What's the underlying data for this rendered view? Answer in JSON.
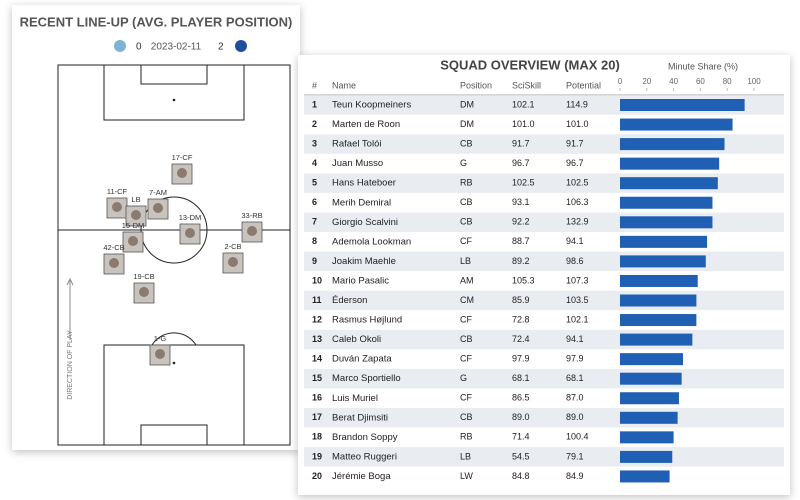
{
  "lineup": {
    "title": "RECENT LINE-UP (AVG. PLAYER POSITION)",
    "home_score": 0,
    "date": "2023-02-11",
    "away_score": 2,
    "direction": "DIRECTION OF PLAY",
    "players": [
      "17-CF",
      "11-CF",
      "LB",
      "7-AM",
      "13-DM",
      "33-RB",
      "15-DM",
      "42-CB",
      "2-CB",
      "19-CB",
      "1-G"
    ]
  },
  "squad": {
    "title": "SQUAD OVERVIEW (MAX 20)",
    "columns": [
      "#",
      "Name",
      "Position",
      "SciSkill",
      "Potential"
    ],
    "minute_share": {
      "title": "Minute Share (%)",
      "xlim": [
        0,
        100
      ],
      "xticks": [
        0,
        20,
        40,
        60,
        80,
        100
      ]
    },
    "rows": [
      [
        "1",
        "Teun Koopmeiners",
        "DM",
        "102.1",
        "114.9",
        93
      ],
      [
        "2",
        "Marten de Roon",
        "DM",
        "101.0",
        "101.0",
        84
      ],
      [
        "3",
        "Rafael Tolói",
        "CB",
        "91.7",
        "91.7",
        78
      ],
      [
        "4",
        "Juan Musso",
        "G",
        "96.7",
        "96.7",
        74
      ],
      [
        "5",
        "Hans Hateboer",
        "RB",
        "102.5",
        "102.5",
        73
      ],
      [
        "6",
        "Merih Demiral",
        "CB",
        "93.1",
        "106.3",
        69
      ],
      [
        "7",
        "Giorgio Scalvini",
        "CB",
        "92.2",
        "132.9",
        69
      ],
      [
        "8",
        "Ademola Lookman",
        "CF",
        "88.7",
        "94.1",
        65
      ],
      [
        "9",
        "Joakim Maehle",
        "LB",
        "89.2",
        "98.6",
        64
      ],
      [
        "10",
        "Mario Pasalic",
        "AM",
        "105.3",
        "107.3",
        58
      ],
      [
        "11",
        "Éderson",
        "CM",
        "85.9",
        "103.5",
        57
      ],
      [
        "12",
        "Rasmus Højlund",
        "CF",
        "72.8",
        "102.1",
        57
      ],
      [
        "13",
        "Caleb Okoli",
        "CB",
        "72.4",
        "94.1",
        54
      ],
      [
        "14",
        "Duván Zapata",
        "CF",
        "97.9",
        "97.9",
        47
      ],
      [
        "15",
        "Marco Sportiello",
        "G",
        "68.1",
        "68.1",
        46
      ],
      [
        "16",
        "Luis Muriel",
        "CF",
        "86.5",
        "87.0",
        44
      ],
      [
        "17",
        "Berat Djimsiti",
        "CB",
        "89.0",
        "89.0",
        43
      ],
      [
        "18",
        "Brandon Soppy",
        "RB",
        "71.4",
        "100.4",
        40
      ],
      [
        "19",
        "Matteo Ruggeri",
        "LB",
        "54.5",
        "79.1",
        39
      ],
      [
        "20",
        "Jérémie Boga",
        "LW",
        "84.8",
        "84.9",
        37
      ]
    ]
  }
}
